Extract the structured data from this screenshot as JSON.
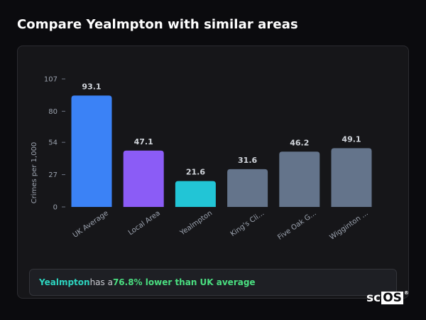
{
  "page": {
    "title": "Compare Yealmpton with similar areas"
  },
  "chart_data": {
    "type": "bar",
    "title": "",
    "xlabel": "",
    "ylabel": "Crimes per 1,000",
    "categories": [
      "UK Average",
      "Local Area",
      "Yealmpton",
      "King's Cli...",
      "Five Oak G...",
      "Wigginton ..."
    ],
    "values": [
      93.1,
      47.1,
      21.6,
      31.6,
      46.2,
      49.1
    ],
    "value_labels": [
      "93.1",
      "47.1",
      "21.6",
      "31.6",
      "46.2",
      "49.1"
    ],
    "bar_colors": [
      "#3b82f6",
      "#8b5cf6",
      "#22c5d6",
      "#64748b",
      "#64748b",
      "#64748b"
    ],
    "yticks": [
      0,
      27,
      54,
      80,
      107
    ],
    "ylim": [
      0,
      107
    ],
    "grid": false,
    "legend": "none"
  },
  "insight": {
    "place": "Yealmpton",
    "middle": " has a ",
    "value": "76.8% lower than UK average"
  },
  "logo": {
    "sc": "sc",
    "os": "OS",
    "reg": "®"
  },
  "colors": {
    "background": "#0b0b0e",
    "card": "#161619",
    "label": "#9ca3af",
    "value_label": "#d1d5db",
    "highlight_place": "#2dd4bf",
    "highlight_value": "#4ade80"
  }
}
